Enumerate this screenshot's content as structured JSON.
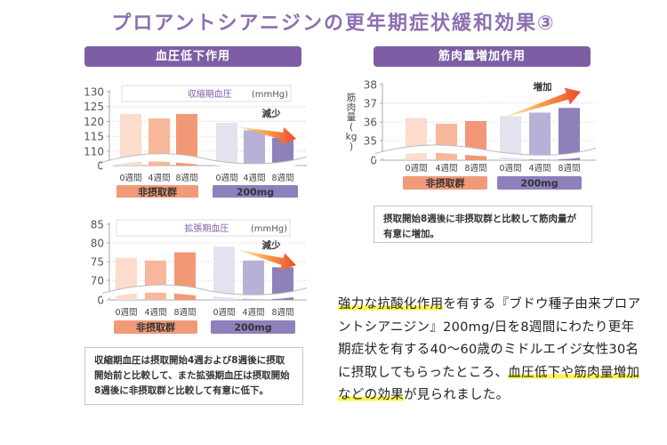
{
  "title": "プロアントシアニジンの更年期症状緩和効果③",
  "colors": {
    "accent_purple": "#7d5ea4",
    "title_purple": "#8d6fb2",
    "control_bars": [
      "#fbdccd",
      "#f7b79b",
      "#f29876"
    ],
    "treatment_bars": [
      "#e4e2ef",
      "#b8b0d6",
      "#8e80bb"
    ],
    "control_label_bg": "#f19a7a",
    "treatment_label_bg": "#8e80bb",
    "highlight": "#fdf34a"
  },
  "sections": {
    "blood_pressure": {
      "banner": "血圧低下作用"
    },
    "muscle": {
      "banner": "筋肉量増加作用"
    }
  },
  "chart_data": [
    {
      "type": "bar",
      "name": "systolic",
      "title": "収縮期血圧",
      "unit": "(mmHg)",
      "yticks": [
        "130",
        "125",
        "120",
        "115",
        "110",
        "0"
      ],
      "ylim": [
        0,
        130
      ],
      "axis_break": "between 0 and 110",
      "categories": [
        "0週間",
        "4週間",
        "8週間",
        "0週間",
        "4週間",
        "8週間"
      ],
      "groups": [
        "非摂取群",
        "200mg"
      ],
      "series": [
        {
          "name": "非摂取群",
          "values": [
            122.5,
            121,
            122.5
          ]
        },
        {
          "name": "200mg",
          "values": [
            119.5,
            117,
            114.5
          ]
        }
      ],
      "annotation": "減少"
    },
    {
      "type": "bar",
      "name": "diastolic",
      "title": "拡張期血圧",
      "unit": "(mmHg)",
      "yticks": [
        "85",
        "80",
        "75",
        "70",
        "0"
      ],
      "ylim": [
        0,
        85
      ],
      "axis_break": "between 0 and 70",
      "categories": [
        "0週間",
        "4週間",
        "8週間",
        "0週間",
        "4週間",
        "8週間"
      ],
      "groups": [
        "非摂取群",
        "200mg"
      ],
      "series": [
        {
          "name": "非摂取群",
          "values": [
            76,
            75.3,
            77.5
          ]
        },
        {
          "name": "200mg",
          "values": [
            79,
            75.3,
            73.5
          ]
        }
      ],
      "annotation": "減少"
    },
    {
      "type": "bar",
      "name": "muscle",
      "title": "",
      "ylabel": "筋肉量(kg)",
      "yticks": [
        "38",
        "37",
        "36",
        "35",
        "0"
      ],
      "ylim": [
        0,
        38
      ],
      "axis_break": "between 0 and 35",
      "categories": [
        "0週間",
        "4週間",
        "8週間",
        "0週間",
        "4週間",
        "8週間"
      ],
      "groups": [
        "非摂取群",
        "200mg"
      ],
      "series": [
        {
          "name": "非摂取群",
          "values": [
            36.2,
            35.9,
            36.05
          ]
        },
        {
          "name": "200mg",
          "values": [
            36.3,
            36.5,
            36.75
          ]
        }
      ],
      "annotation": "増加"
    }
  ],
  "notes": {
    "bp": [
      "収縮期血圧は摂取開始4週および8週後に摂取",
      "開始前と比較して、また拡張期血圧は摂取開始",
      "8週後に非摂取群と比較して有意に低下。"
    ],
    "muscle": [
      "摂取開始8週後に非摂取群と比較して筋肉量が",
      "有意に増加。"
    ]
  },
  "body": {
    "segments": [
      {
        "text": "強力な抗酸化作用",
        "highlight": true
      },
      {
        "text": "を有する『ブドウ種子由来プロアントシアニジン』200mg/日を8週間にわたり更年期症状を有する40〜60歳のミドルエイジ女性30名に摂取してもらったところ、",
        "highlight": false
      },
      {
        "text": "血圧低下や筋肉量増加などの効果",
        "highlight": true
      },
      {
        "text": "が見られました。",
        "highlight": false
      }
    ]
  }
}
